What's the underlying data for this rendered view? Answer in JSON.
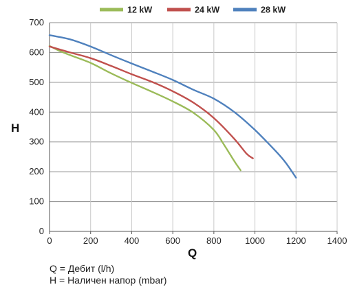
{
  "chart_data": {
    "type": "line",
    "xlabel": "Q",
    "ylabel": "H",
    "xlim": [
      0,
      1400
    ],
    "ylim": [
      0,
      700
    ],
    "x_ticks": [
      0,
      200,
      400,
      600,
      800,
      1000,
      1200,
      1400
    ],
    "y_ticks": [
      0,
      100,
      200,
      300,
      400,
      500,
      600,
      700
    ],
    "grid": "horizontal",
    "legend_position": "top",
    "series": [
      {
        "name": "12 kW",
        "color": "#9bbb59",
        "x": [
          0,
          50,
          100,
          200,
          300,
          400,
          500,
          600,
          700,
          800,
          850,
          900,
          930
        ],
        "y": [
          622,
          605,
          591,
          565,
          530,
          498,
          468,
          436,
          398,
          340,
          290,
          235,
          205
        ]
      },
      {
        "name": "24 kW",
        "color": "#c0504d",
        "x": [
          0,
          100,
          200,
          300,
          400,
          500,
          600,
          700,
          800,
          900,
          960,
          990
        ],
        "y": [
          620,
          600,
          581,
          555,
          527,
          501,
          470,
          432,
          380,
          310,
          260,
          245
        ]
      },
      {
        "name": "28 kW",
        "color": "#4f81bd",
        "x": [
          0,
          100,
          200,
          300,
          400,
          500,
          600,
          700,
          800,
          900,
          1000,
          1100,
          1150,
          1200
        ],
        "y": [
          658,
          644,
          620,
          591,
          563,
          536,
          508,
          475,
          445,
          400,
          340,
          270,
          230,
          180
        ]
      }
    ]
  },
  "footnotes": {
    "q": "Q = Дебит (l/h)",
    "h": "H = Наличен напор (mbar)"
  }
}
